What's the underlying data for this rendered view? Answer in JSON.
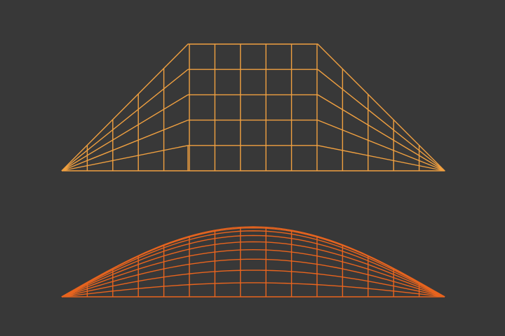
{
  "canvas": {
    "background_color": "#383838"
  },
  "meshes": [
    {
      "name": "trapezoid-wireframe",
      "shape": "trapezoid",
      "stroke_color": "#F0A040",
      "columns": 15,
      "rows": 5
    },
    {
      "name": "curved-wireframe",
      "shape": "dome",
      "stroke_color": "#E8641E",
      "columns": 15,
      "rows": 9
    }
  ]
}
